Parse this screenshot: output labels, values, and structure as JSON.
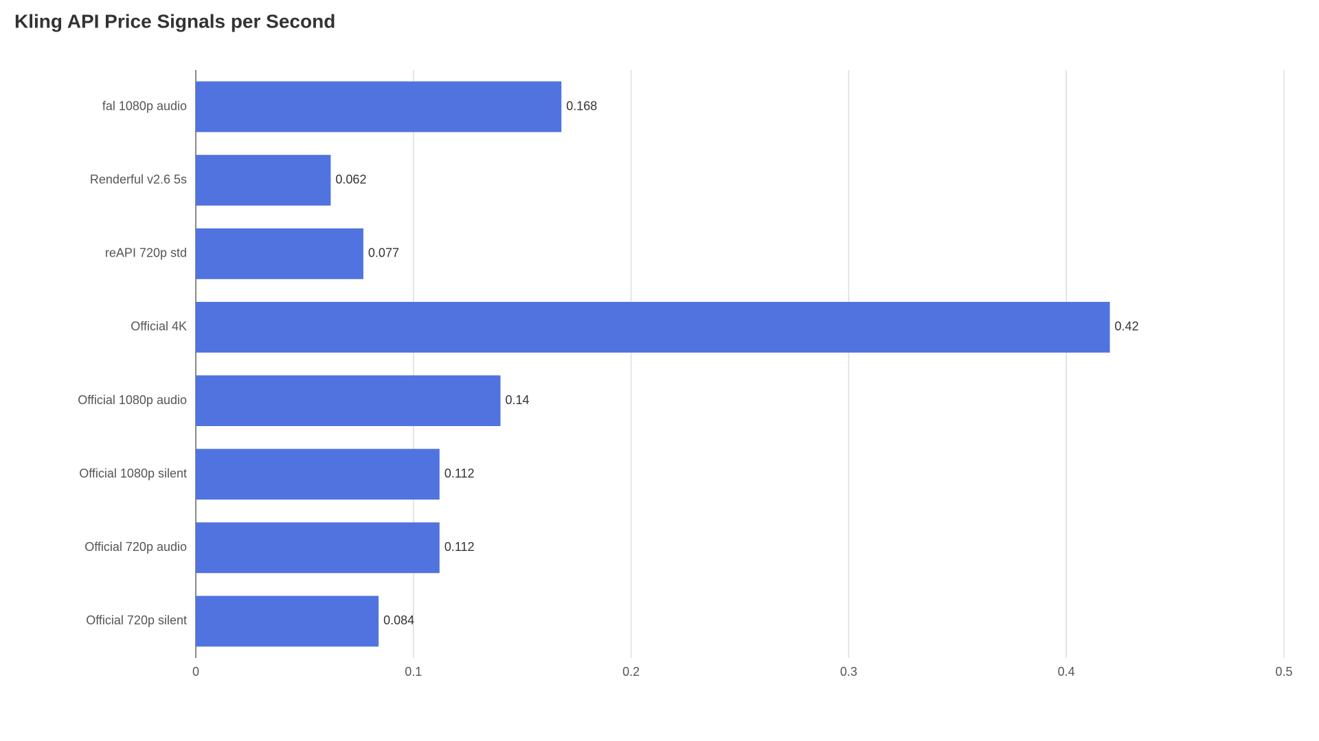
{
  "chart_data": {
    "type": "bar",
    "orientation": "horizontal",
    "title": "Kling API Price Signals per Second",
    "categories": [
      "fal 1080p audio",
      "Renderful v2.6 5s",
      "reAPI 720p std",
      "Official 4K",
      "Official 1080p audio",
      "Official 1080p silent",
      "Official 720p audio",
      "Official 720p silent"
    ],
    "values": [
      0.168,
      0.062,
      0.077,
      0.42,
      0.14,
      0.112,
      0.112,
      0.084
    ],
    "color": "#5073df",
    "xlim": [
      0,
      0.5
    ],
    "xticks": [
      0,
      0.1,
      0.2,
      0.3,
      0.4,
      0.5
    ],
    "grid": true
  }
}
